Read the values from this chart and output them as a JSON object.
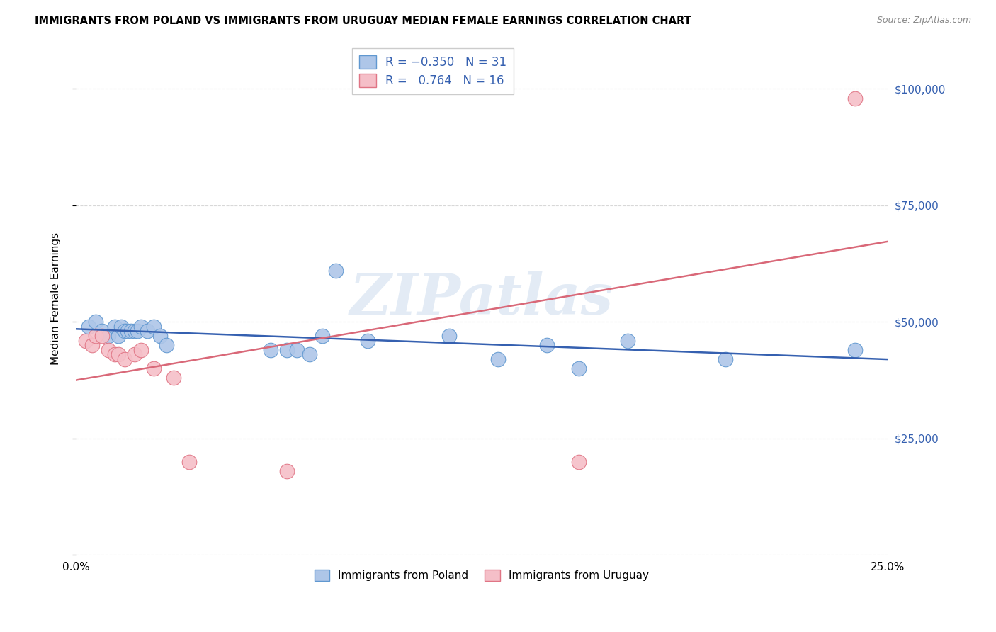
{
  "title": "IMMIGRANTS FROM POLAND VS IMMIGRANTS FROM URUGUAY MEDIAN FEMALE EARNINGS CORRELATION CHART",
  "source": "Source: ZipAtlas.com",
  "ylabel": "Median Female Earnings",
  "x_min": 0.0,
  "x_max": 0.25,
  "y_min": 0,
  "y_max": 110000,
  "y_ticks": [
    0,
    25000,
    50000,
    75000,
    100000
  ],
  "x_ticks": [
    0.0,
    0.05,
    0.1,
    0.15,
    0.2,
    0.25
  ],
  "x_tick_labels": [
    "0.0%",
    "",
    "",
    "",
    "",
    "25.0%"
  ],
  "poland_color": "#aec6e8",
  "poland_edge_color": "#6098d0",
  "uruguay_color": "#f5bfc8",
  "uruguay_edge_color": "#e07585",
  "poland_line_color": "#3560b0",
  "uruguay_line_color": "#d96878",
  "legend_label_poland": "Immigrants from Poland",
  "legend_label_uruguay": "Immigrants from Uruguay",
  "poland_x": [
    0.004,
    0.006,
    0.008,
    0.01,
    0.012,
    0.013,
    0.014,
    0.015,
    0.016,
    0.017,
    0.018,
    0.019,
    0.02,
    0.022,
    0.024,
    0.026,
    0.028,
    0.06,
    0.065,
    0.068,
    0.072,
    0.076,
    0.08,
    0.09,
    0.115,
    0.13,
    0.145,
    0.155,
    0.17,
    0.2,
    0.24
  ],
  "poland_y": [
    49000,
    50000,
    48000,
    47000,
    49000,
    47000,
    49000,
    48000,
    48000,
    48000,
    48000,
    48000,
    49000,
    48000,
    49000,
    47000,
    45000,
    44000,
    44000,
    44000,
    43000,
    47000,
    61000,
    46000,
    47000,
    42000,
    45000,
    40000,
    46000,
    42000,
    44000
  ],
  "uruguay_x": [
    0.003,
    0.005,
    0.006,
    0.008,
    0.01,
    0.012,
    0.013,
    0.015,
    0.018,
    0.02,
    0.024,
    0.03,
    0.035,
    0.065,
    0.155,
    0.24
  ],
  "uruguay_y": [
    46000,
    45000,
    47000,
    47000,
    44000,
    43000,
    43000,
    42000,
    43000,
    44000,
    40000,
    38000,
    20000,
    18000,
    20000,
    98000
  ],
  "watermark_text": "ZIPatlas",
  "background_color": "#ffffff",
  "grid_color": "#d8d8d8",
  "right_axis_color": "#3560b0",
  "right_y_ticks": [
    25000,
    50000,
    75000,
    100000
  ],
  "right_y_tick_labels": [
    "$25,000",
    "$50,000",
    "$75,000",
    "$100,000"
  ]
}
